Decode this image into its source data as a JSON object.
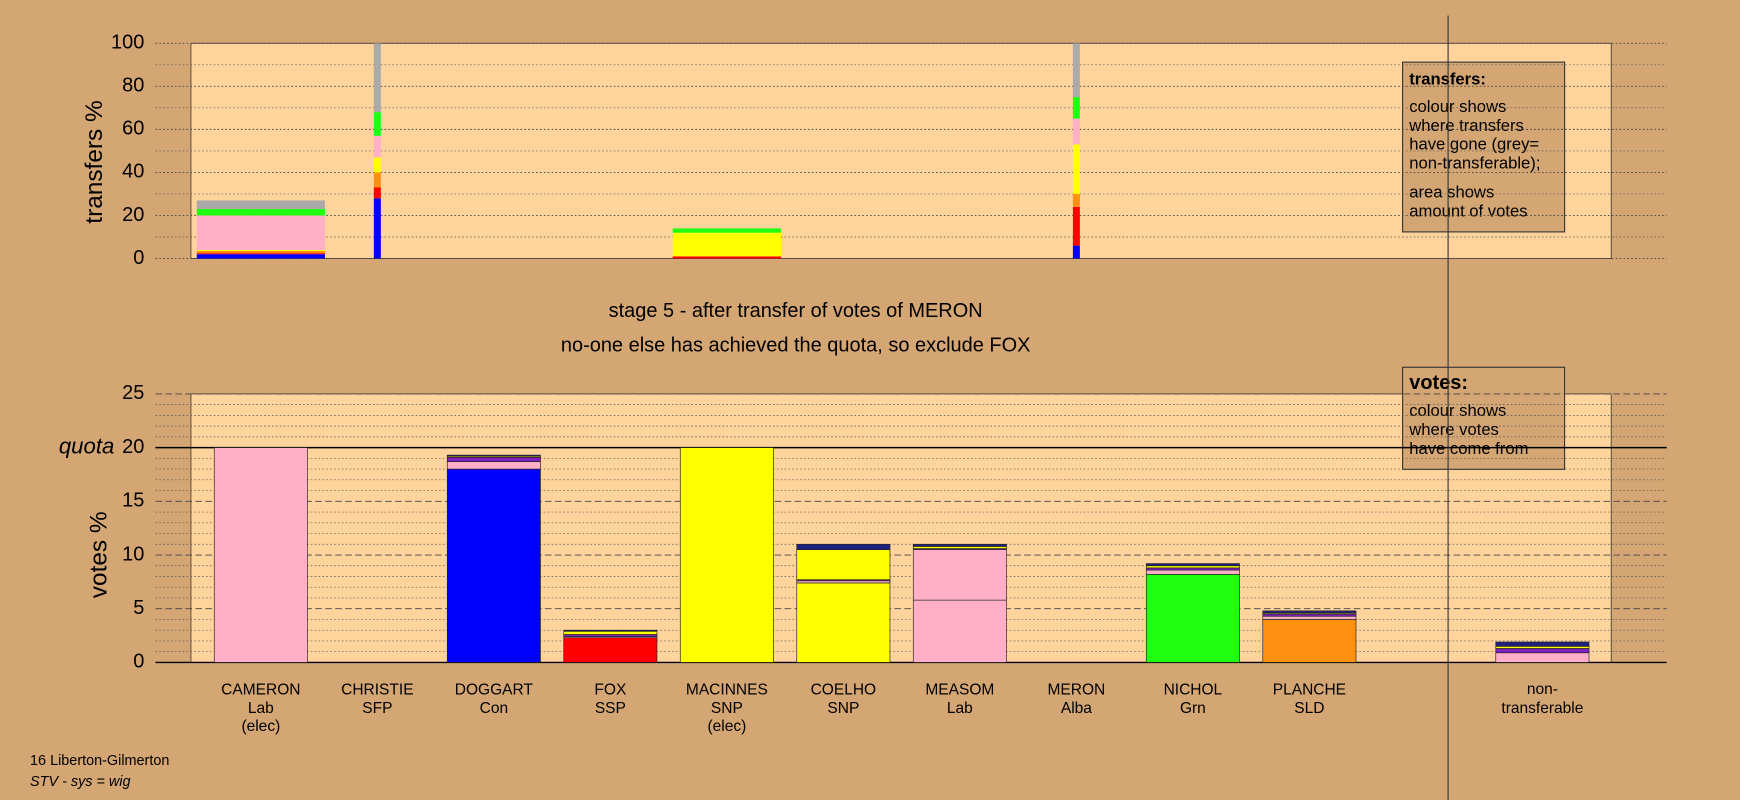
{
  "chart_data": [
    {
      "type": "bar",
      "ylabel": "transfers %",
      "ylim": [
        0,
        100
      ],
      "yticks": [
        0,
        20,
        40,
        60,
        80,
        100
      ],
      "minor_yticks": [
        10,
        30,
        50,
        70,
        90
      ],
      "widths": [
        1.1,
        0.06,
        0,
        0,
        0.93,
        0,
        0,
        0.06,
        0,
        0,
        0
      ],
      "series": [
        {
          "color": "#0000ff",
          "values": [
            2,
            28,
            0,
            0,
            0,
            0,
            0,
            6,
            0,
            0,
            0
          ]
        },
        {
          "color": "#ff0000",
          "values": [
            0.5,
            5,
            0,
            0,
            1,
            0,
            0,
            18,
            0,
            0,
            0
          ]
        },
        {
          "color": "#ff9010",
          "values": [
            1,
            7,
            0,
            0,
            0,
            0,
            0,
            6,
            0,
            0,
            0
          ]
        },
        {
          "color": "#ffff00",
          "values": [
            0.5,
            7,
            0,
            0,
            11,
            0,
            0,
            23,
            0,
            0,
            0
          ]
        },
        {
          "color": "#ffb0c8",
          "values": [
            16,
            10,
            0,
            0,
            0,
            0,
            0,
            12,
            0,
            0,
            0
          ]
        },
        {
          "color": "#20ff10",
          "values": [
            3,
            11,
            0,
            0,
            2,
            0,
            0,
            10,
            0,
            0,
            0
          ]
        },
        {
          "color": "#aaaaaa",
          "values": [
            4,
            32,
            0,
            0,
            0,
            0,
            0,
            25,
            0,
            0,
            0
          ]
        }
      ]
    },
    {
      "type": "bar",
      "ylabel": "votes %",
      "ylim": [
        0,
        25
      ],
      "yticks": [
        0,
        5,
        10,
        15,
        20,
        25
      ],
      "minor_yticks": [
        1,
        2,
        3,
        4,
        6,
        7,
        8,
        9,
        11,
        12,
        13,
        14,
        16,
        17,
        18,
        19,
        21,
        22,
        23,
        24
      ],
      "quota": {
        "value": 20,
        "label": "quota"
      },
      "categories": [
        "CAMERON",
        "CHRISTIE",
        "DOGGART",
        "FOX",
        "MACINNES",
        "COELHO",
        "MEASOM",
        "MERON",
        "NICHOL",
        "PLANCHE",
        "non-\ntransferable"
      ],
      "parties": [
        "Lab",
        "SFP",
        "Con",
        "SSP",
        "SNP",
        "SNP",
        "Lab",
        "Alba",
        "Grn",
        "SLD",
        null
      ],
      "notes": [
        "(elec)",
        null,
        null,
        null,
        "(elec)",
        null,
        null,
        null,
        null,
        null,
        null
      ],
      "series": [
        {
          "colors": [
            "#ffb0c8",
            "#8020c0",
            "#0000ff",
            "#ff0000",
            "#ffff00",
            "#ffff00",
            "#ffb0c8",
            "#202080",
            "#20ff10",
            "#ff9010",
            "#aaaaaa"
          ],
          "values": [
            20,
            0,
            18,
            2.3,
            20,
            7.4,
            5.8,
            0,
            8.2,
            4,
            0
          ]
        },
        {
          "color": "#ffb0c8",
          "values": [
            0,
            0,
            0.7,
            0.1,
            0,
            0.2,
            4.7,
            0,
            0.4,
            0.3,
            0.9
          ]
        },
        {
          "color": "#8020c0",
          "values": [
            0,
            0,
            0.4,
            0.2,
            0,
            0.1,
            0.1,
            0,
            0.2,
            0.2,
            0.4
          ]
        },
        {
          "color": "#ffff00",
          "values": [
            0,
            0,
            0.1,
            0.3,
            0,
            2.8,
            0.2,
            0,
            0.2,
            0.1,
            0.2
          ]
        },
        {
          "color": "#202080",
          "values": [
            0,
            0,
            0.1,
            0.1,
            0,
            0.5,
            0.2,
            0,
            0.2,
            0.2,
            0.4
          ]
        }
      ]
    }
  ],
  "captions": [
    "stage 5 - after transfer of votes of MERON",
    "no-one else has achieved the quota, so exclude FOX"
  ],
  "info_boxes": [
    {
      "title": "transfers:",
      "paragraphs": [
        [
          "colour shows",
          "where transfers",
          "have gone (grey=",
          "non-transferable);"
        ],
        [
          "area shows",
          "amount of votes"
        ]
      ]
    },
    {
      "title": "votes:",
      "paragraphs": [
        [
          "colour shows",
          "where votes",
          "have come from"
        ]
      ]
    }
  ],
  "footer": [
    "16 Liberton-Gilmerton",
    "STV - sys = wig"
  ]
}
